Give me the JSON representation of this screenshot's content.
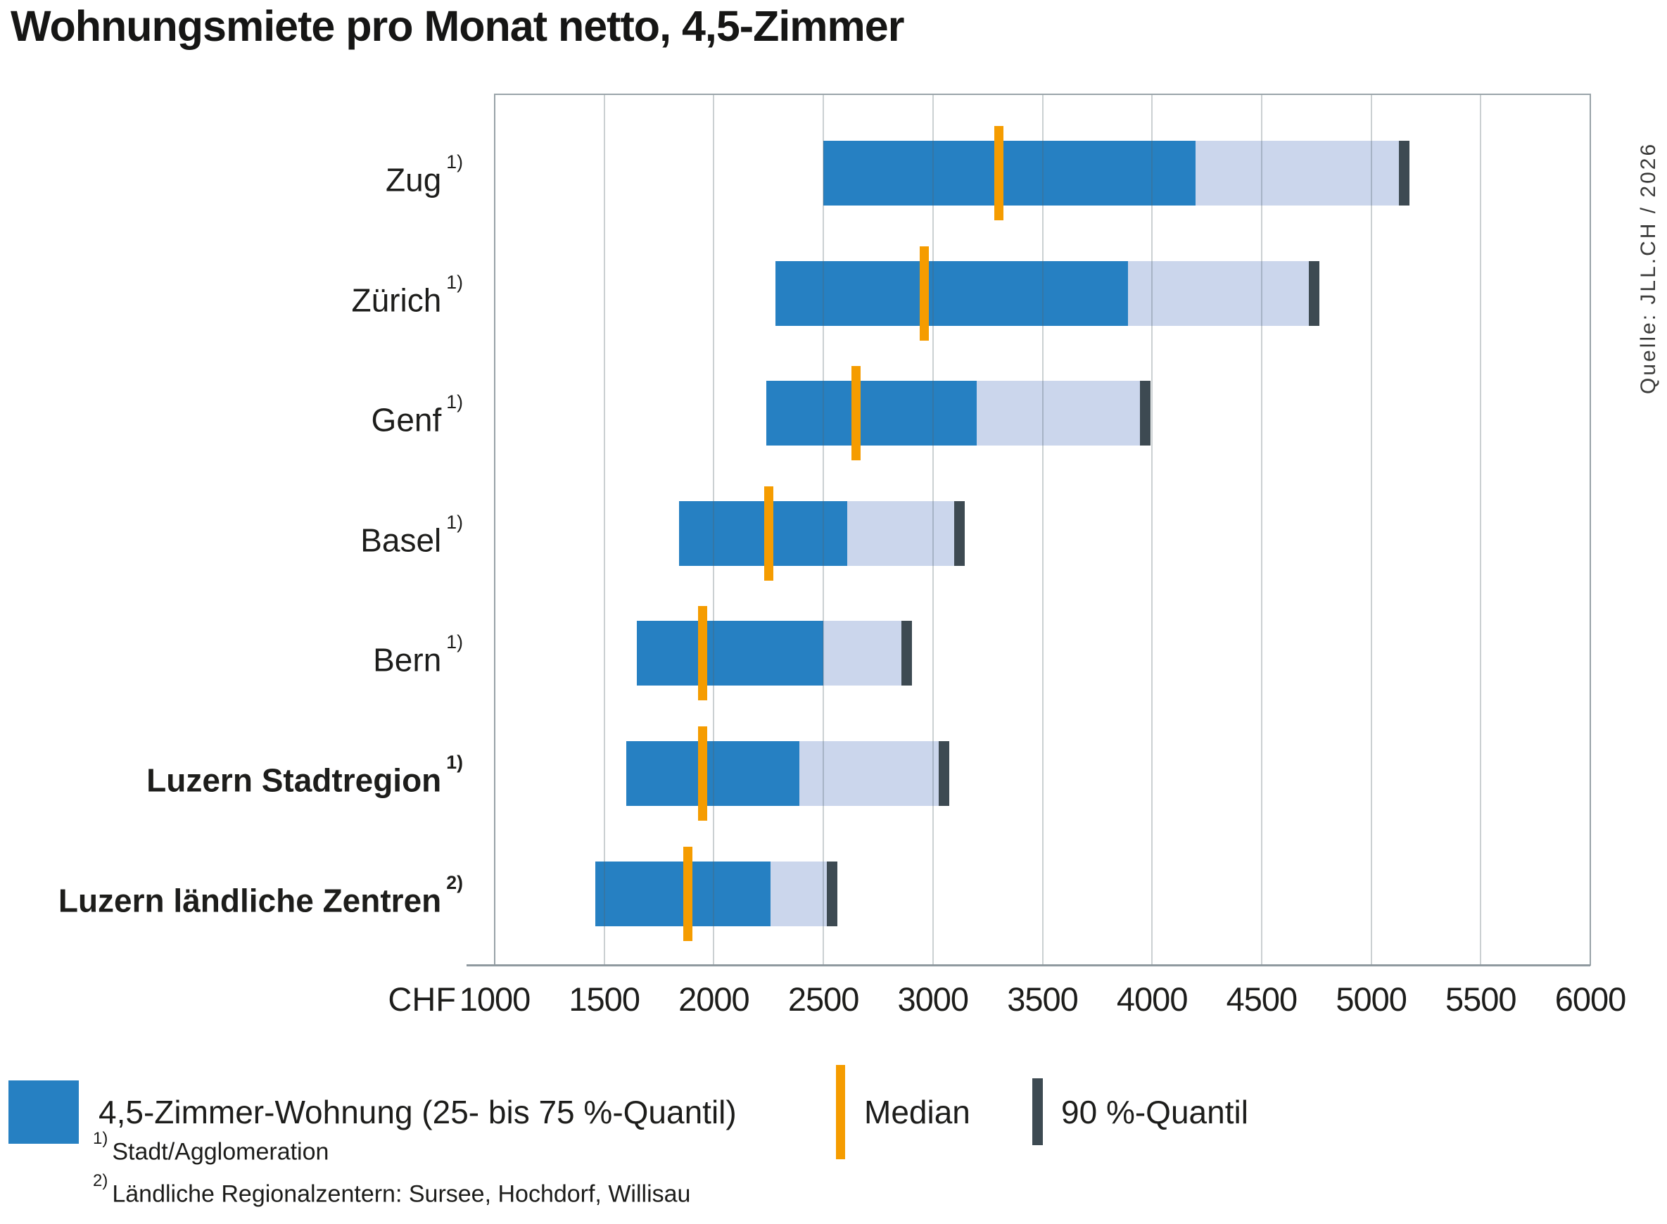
{
  "title": "Wohnungsmiete pro Monat netto, 4,5-Zimmer",
  "source": "Quelle: JLL.CH / 2026",
  "x_axis": {
    "unit_label": "CHF",
    "min": 1000,
    "max": 6000,
    "step": 500
  },
  "footnotes": [
    {
      "marker": "1)",
      "text": "Stadt/Agglomeration"
    },
    {
      "marker": "2)",
      "text": "Ländliche Regionalzentern: Sursee, Hochdorf, Willisau"
    }
  ],
  "colors": {
    "iqr_bar": "#2680c2",
    "upper_quantile_bar": "#cbd6ec",
    "median_line": "#f59c00",
    "q90_tick": "#3d4a52",
    "gridline": "#c6cdd1",
    "axis_line": "#8f999f",
    "text": "#1d1d1b"
  },
  "chart_data": {
    "type": "bar",
    "orientation": "horizontal",
    "title": "Wohnungsmiete pro Monat netto, 4,5-Zimmer",
    "x_unit_label": "CHF",
    "xlim": [
      1000,
      6000
    ],
    "x_ticks": [
      1000,
      1500,
      2000,
      2500,
      3000,
      3500,
      4000,
      4500,
      5000,
      5500,
      6000
    ],
    "grid": true,
    "legend": [
      {
        "swatch": "blue-rect",
        "label": "4,5-Zimmer-Wohnung (25- bis 75 %-Quantil)"
      },
      {
        "swatch": "orange-line",
        "label": "Median"
      },
      {
        "swatch": "dark-line",
        "label": "90 %-Quantil"
      }
    ],
    "legend_position": "bottom",
    "categories": [
      "Zug",
      "Zürich",
      "Genf",
      "Basel",
      "Bern",
      "Luzern Stadtregion",
      "Luzern ländliche Zentren"
    ],
    "rows": [
      {
        "label": "Zug",
        "footnote_ref": "1)",
        "emphasized": false,
        "q25": 2500,
        "median": 3300,
        "q75": 4200,
        "q90": 5150
      },
      {
        "label": "Zürich",
        "footnote_ref": "1)",
        "emphasized": false,
        "q25": 2280,
        "median": 2960,
        "q75": 3890,
        "q90": 4740
      },
      {
        "label": "Genf",
        "footnote_ref": "1)",
        "emphasized": false,
        "q25": 2240,
        "median": 2650,
        "q75": 3200,
        "q90": 3970
      },
      {
        "label": "Basel",
        "footnote_ref": "1)",
        "emphasized": false,
        "q25": 1840,
        "median": 2250,
        "q75": 2610,
        "q90": 3120
      },
      {
        "label": "Bern",
        "footnote_ref": "1)",
        "emphasized": false,
        "q25": 1650,
        "median": 1950,
        "q75": 2500,
        "q90": 2880
      },
      {
        "label": "Luzern Stadtregion",
        "footnote_ref": "1)",
        "emphasized": true,
        "q25": 1600,
        "median": 1950,
        "q75": 2390,
        "q90": 3050
      },
      {
        "label": "Luzern ländliche Zentren",
        "footnote_ref": "2)",
        "emphasized": true,
        "q25": 1460,
        "median": 1880,
        "q75": 2260,
        "q90": 2540
      }
    ],
    "series": [
      {
        "name": "25%-Quantil",
        "values": [
          2500,
          2280,
          2240,
          1840,
          1650,
          1600,
          1460
        ]
      },
      {
        "name": "Median",
        "values": [
          3300,
          2960,
          2650,
          2250,
          1950,
          1950,
          1880
        ]
      },
      {
        "name": "75%-Quantil",
        "values": [
          4200,
          3890,
          3200,
          2610,
          2500,
          2390,
          2260
        ]
      },
      {
        "name": "90%-Quantil",
        "values": [
          5150,
          4740,
          3970,
          3120,
          2880,
          3050,
          2540
        ]
      }
    ]
  }
}
